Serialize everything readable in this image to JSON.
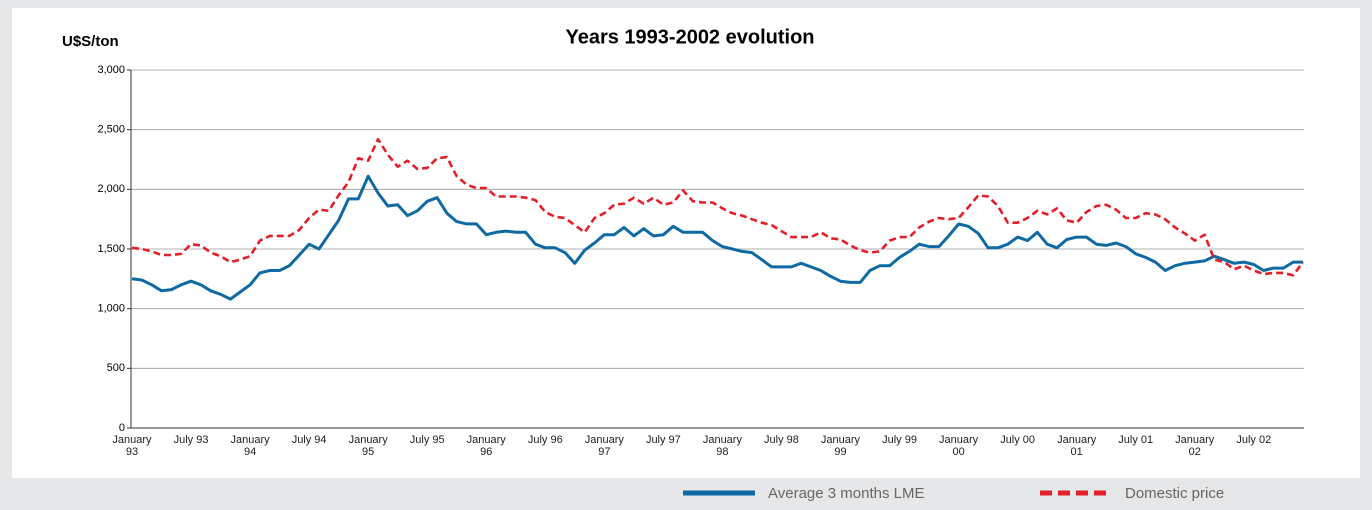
{
  "chart_data": {
    "type": "line",
    "title": "Years 1993-2002 evolution",
    "y_label": "U$S/ton",
    "categories": [
      "January 93",
      null,
      null,
      null,
      null,
      null,
      "July 93",
      null,
      null,
      null,
      null,
      null,
      "January 94",
      null,
      null,
      null,
      null,
      null,
      "July 94",
      null,
      null,
      null,
      null,
      null,
      "January 95",
      null,
      null,
      null,
      null,
      null,
      "July 95",
      null,
      null,
      null,
      null,
      null,
      "January 96",
      null,
      null,
      null,
      null,
      null,
      "July 96",
      null,
      null,
      null,
      null,
      null,
      "January 97",
      null,
      null,
      null,
      null,
      null,
      "July 97",
      null,
      null,
      null,
      null,
      null,
      "January 98",
      null,
      null,
      null,
      null,
      null,
      "July 98",
      null,
      null,
      null,
      null,
      null,
      "January 99",
      null,
      null,
      null,
      null,
      null,
      "July 99",
      null,
      null,
      null,
      null,
      null,
      "January 00",
      null,
      null,
      null,
      null,
      null,
      "July 00",
      null,
      null,
      null,
      null,
      null,
      "January 01",
      null,
      null,
      null,
      null,
      null,
      "July 01",
      null,
      null,
      null,
      null,
      null,
      "January 02",
      null,
      null,
      null,
      null,
      null,
      "July 02",
      null,
      null,
      null,
      null,
      null
    ],
    "series": [
      {
        "name": "Average 3 months LME",
        "color": "#0f6aa3",
        "dash": false,
        "values": [
          1250,
          1240,
          1200,
          1150,
          1160,
          1200,
          1230,
          1200,
          1150,
          1120,
          1080,
          1140,
          1200,
          1300,
          1320,
          1320,
          1360,
          1450,
          1540,
          1500,
          1620,
          1740,
          1920,
          1920,
          2110,
          1970,
          1860,
          1870,
          1780,
          1820,
          1900,
          1930,
          1800,
          1730,
          1710,
          1710,
          1620,
          1640,
          1650,
          1640,
          1640,
          1540,
          1510,
          1510,
          1470,
          1380,
          1490,
          1550,
          1620,
          1620,
          1680,
          1610,
          1670,
          1610,
          1620,
          1690,
          1640,
          1640,
          1640,
          1570,
          1520,
          1500,
          1480,
          1470,
          1410,
          1350,
          1350,
          1350,
          1380,
          1350,
          1320,
          1270,
          1230,
          1220,
          1220,
          1320,
          1360,
          1360,
          1430,
          1480,
          1540,
          1520,
          1520,
          1610,
          1710,
          1690,
          1630,
          1510,
          1510,
          1540,
          1600,
          1570,
          1640,
          1540,
          1510,
          1580,
          1600,
          1600,
          1540,
          1530,
          1550,
          1520,
          1460,
          1430,
          1390,
          1320,
          1360,
          1380,
          1390,
          1400,
          1440,
          1410,
          1380,
          1390,
          1370,
          1320,
          1340,
          1340,
          1390,
          1390
        ]
      },
      {
        "name": "Domestic price",
        "color": "#e3202a",
        "dash": true,
        "values": [
          1510,
          1500,
          1480,
          1450,
          1450,
          1460,
          1540,
          1530,
          1470,
          1440,
          1390,
          1410,
          1440,
          1570,
          1610,
          1610,
          1610,
          1660,
          1760,
          1830,
          1820,
          1950,
          2060,
          2260,
          2240,
          2420,
          2290,
          2190,
          2240,
          2170,
          2180,
          2260,
          2270,
          2110,
          2040,
          2010,
          2010,
          1940,
          1940,
          1940,
          1930,
          1910,
          1810,
          1770,
          1760,
          1700,
          1640,
          1760,
          1800,
          1870,
          1880,
          1930,
          1880,
          1930,
          1870,
          1890,
          1990,
          1900,
          1890,
          1890,
          1840,
          1800,
          1780,
          1750,
          1720,
          1700,
          1650,
          1600,
          1600,
          1600,
          1640,
          1590,
          1580,
          1530,
          1490,
          1470,
          1480,
          1570,
          1600,
          1600,
          1680,
          1730,
          1760,
          1750,
          1760,
          1850,
          1950,
          1940,
          1860,
          1720,
          1720,
          1760,
          1820,
          1790,
          1840,
          1740,
          1720,
          1810,
          1860,
          1870,
          1830,
          1760,
          1760,
          1800,
          1790,
          1750,
          1680,
          1630,
          1570,
          1620,
          1410,
          1390,
          1330,
          1360,
          1320,
          1290,
          1300,
          1300,
          1280,
          1390
        ]
      }
    ],
    "ylim": [
      0,
      3000
    ],
    "yticks": [
      0,
      500,
      {
        "value": 1000,
        "label": "1,000"
      },
      {
        "value": 1500,
        "label": "1,500"
      },
      {
        "value": 2000,
        "label": "2,000"
      },
      {
        "value": 2500,
        "label": "2,500"
      },
      {
        "value": 3000,
        "label": "3,000"
      }
    ],
    "grid": true,
    "legend": "bottom"
  }
}
